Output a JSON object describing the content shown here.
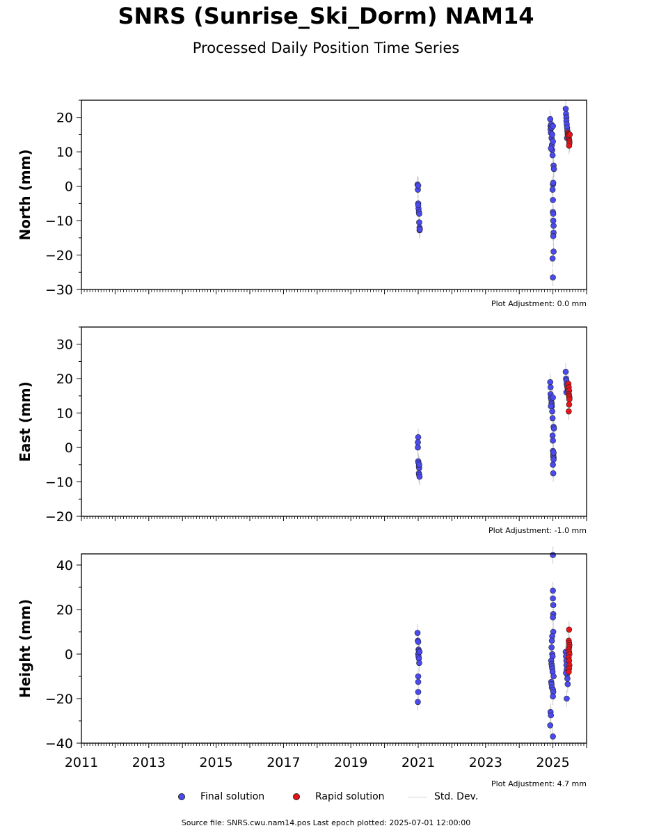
{
  "header": {
    "title": "SNRS (Sunrise_Ski_Dorm) NAM14",
    "subtitle": "Processed Daily Position Time Series"
  },
  "legend": {
    "final": "Final solution",
    "rapid": "Rapid solution",
    "std": "Std. Dev."
  },
  "footer": {
    "source": "Source file: SNRS.cwu.nam14.pos  Last epoch plotted: 2025-07-01 12:00:00"
  },
  "colors": {
    "final": "#4a4af0",
    "rapid": "#e8141a",
    "std": "#c8c8c8",
    "marker_edge": "#222222"
  },
  "chart_data": [
    {
      "type": "scatter",
      "ylabel": "North (mm)",
      "adjustment": "Plot Adjustment: 0.0 mm",
      "xlim": [
        2011,
        2026
      ],
      "ylim": [
        -30,
        25
      ],
      "yticks": [
        -30,
        -20,
        -10,
        0,
        10,
        20
      ],
      "series": [
        {
          "name": "Final solution",
          "points": [
            [
              2020.98,
              0.5
            ],
            [
              2020.99,
              -1.0
            ],
            [
              2021.0,
              0.2
            ],
            [
              2021.0,
              -5.0
            ],
            [
              2021.01,
              -6.5
            ],
            [
              2021.02,
              -7.5
            ],
            [
              2021.03,
              -8.0
            ],
            [
              2021.03,
              -10.5
            ],
            [
              2021.04,
              -12.0
            ],
            [
              2021.04,
              -12.8
            ],
            [
              2021.05,
              -12.5
            ],
            [
              2021.0,
              -5.5
            ],
            [
              2024.92,
              19.5
            ],
            [
              2024.93,
              17.5
            ],
            [
              2024.93,
              16.5
            ],
            [
              2024.94,
              15.5
            ],
            [
              2024.95,
              18.0
            ],
            [
              2024.96,
              17.0
            ],
            [
              2024.96,
              14.0
            ],
            [
              2024.97,
              12.0
            ],
            [
              2024.98,
              15.0
            ],
            [
              2024.98,
              10.5
            ],
            [
              2024.99,
              9.0
            ],
            [
              2025.0,
              17.5
            ],
            [
              2024.94,
              11.0
            ],
            [
              2025.0,
              13.0
            ],
            [
              2025.02,
              6.0
            ],
            [
              2025.03,
              5.0
            ],
            [
              2025.0,
              0.5
            ],
            [
              2024.99,
              -1.0
            ],
            [
              2025.01,
              1.0
            ],
            [
              2025.0,
              -4.0
            ],
            [
              2025.0,
              -7.5
            ],
            [
              2025.01,
              -8.0
            ],
            [
              2025.01,
              -10.0
            ],
            [
              2025.02,
              -11.5
            ],
            [
              2025.02,
              -13.5
            ],
            [
              2025.01,
              -14.5
            ],
            [
              2025.02,
              -19.0
            ],
            [
              2024.99,
              -21.0
            ],
            [
              2025.0,
              -26.5
            ],
            [
              2025.38,
              22.5
            ],
            [
              2025.39,
              21.0
            ],
            [
              2025.4,
              20.0
            ],
            [
              2025.4,
              19.0
            ],
            [
              2025.41,
              18.0
            ],
            [
              2025.42,
              17.0
            ],
            [
              2025.43,
              16.0
            ],
            [
              2025.44,
              15.0
            ],
            [
              2025.45,
              14.5
            ],
            [
              2025.42,
              14.0
            ]
          ]
        },
        {
          "name": "Rapid solution",
          "points": [
            [
              2025.44,
              15.5
            ],
            [
              2025.45,
              15.0
            ],
            [
              2025.46,
              14.5
            ],
            [
              2025.47,
              14.0
            ],
            [
              2025.48,
              13.5
            ],
            [
              2025.49,
              13.0
            ],
            [
              2025.49,
              12.5
            ],
            [
              2025.48,
              11.8
            ],
            [
              2025.47,
              15.2
            ],
            [
              2025.46,
              14.8
            ],
            [
              2025.5,
              15.0
            ]
          ]
        }
      ]
    },
    {
      "type": "scatter",
      "ylabel": "East (mm)",
      "adjustment": "Plot Adjustment: -1.0 mm",
      "xlim": [
        2011,
        2026
      ],
      "ylim": [
        -20,
        35
      ],
      "yticks": [
        -20,
        -10,
        0,
        10,
        20,
        30
      ],
      "series": [
        {
          "name": "Final solution",
          "points": [
            [
              2021.0,
              3.0
            ],
            [
              2020.99,
              1.5
            ],
            [
              2020.99,
              0.0
            ],
            [
              2021.0,
              -4.0
            ],
            [
              2021.01,
              -4.5
            ],
            [
              2021.02,
              -5.5
            ],
            [
              2021.03,
              -6.0
            ],
            [
              2021.02,
              -7.5
            ],
            [
              2021.03,
              -8.0
            ],
            [
              2021.04,
              -8.5
            ],
            [
              2021.03,
              -5.0
            ],
            [
              2024.92,
              19.0
            ],
            [
              2024.93,
              17.5
            ],
            [
              2024.93,
              15.5
            ],
            [
              2024.94,
              14.5
            ],
            [
              2024.95,
              14.0
            ],
            [
              2024.96,
              13.0
            ],
            [
              2024.96,
              12.5
            ],
            [
              2024.97,
              12.0
            ],
            [
              2024.98,
              10.5
            ],
            [
              2024.99,
              8.5
            ],
            [
              2025.0,
              14.5
            ],
            [
              2024.94,
              12.0
            ],
            [
              2025.02,
              6.0
            ],
            [
              2025.03,
              5.5
            ],
            [
              2024.99,
              3.5
            ],
            [
              2025.0,
              2.0
            ],
            [
              2025.0,
              -1.0
            ],
            [
              2025.01,
              -2.0
            ],
            [
              2025.01,
              -2.5
            ],
            [
              2025.02,
              -3.0
            ],
            [
              2025.02,
              -3.5
            ],
            [
              2025.0,
              -5.0
            ],
            [
              2025.01,
              -7.5
            ],
            [
              2025.02,
              -1.5
            ],
            [
              2025.38,
              22.0
            ],
            [
              2025.39,
              20.0
            ],
            [
              2025.4,
              19.5
            ],
            [
              2025.41,
              18.5
            ],
            [
              2025.42,
              18.0
            ],
            [
              2025.43,
              17.5
            ],
            [
              2025.44,
              17.0
            ],
            [
              2025.4,
              16.0
            ],
            [
              2025.45,
              16.5
            ]
          ]
        },
        {
          "name": "Rapid solution",
          "points": [
            [
              2025.46,
              18.5
            ],
            [
              2025.47,
              17.5
            ],
            [
              2025.48,
              16.5
            ],
            [
              2025.47,
              15.5
            ],
            [
              2025.48,
              15.0
            ],
            [
              2025.49,
              14.5
            ],
            [
              2025.49,
              14.0
            ],
            [
              2025.48,
              12.5
            ],
            [
              2025.47,
              10.5
            ]
          ]
        }
      ]
    },
    {
      "type": "scatter",
      "ylabel": "Height (mm)",
      "adjustment": "Plot Adjustment: 4.7 mm",
      "xlim": [
        2011,
        2026
      ],
      "ylim": [
        -40,
        45
      ],
      "yticks": [
        -40,
        -20,
        0,
        20,
        40
      ],
      "xticks": [
        2011,
        2013,
        2015,
        2017,
        2019,
        2021,
        2023,
        2025
      ],
      "series": [
        {
          "name": "Final solution",
          "points": [
            [
              2020.98,
              9.5
            ],
            [
              2020.99,
              6.0
            ],
            [
              2021.0,
              5.5
            ],
            [
              2021.01,
              2.0
            ],
            [
              2021.02,
              1.5
            ],
            [
              2021.0,
              0.0
            ],
            [
              2021.01,
              -1.0
            ],
            [
              2021.02,
              -2.0
            ],
            [
              2021.03,
              -4.0
            ],
            [
              2021.0,
              -10.0
            ],
            [
              2021.0,
              -12.5
            ],
            [
              2021.0,
              -17.0
            ],
            [
              2020.99,
              -21.5
            ],
            [
              2021.04,
              1.0
            ],
            [
              2025.0,
              44.5
            ],
            [
              2025.0,
              28.5
            ],
            [
              2025.0,
              25.0
            ],
            [
              2025.01,
              22.0
            ],
            [
              2025.01,
              18.0
            ],
            [
              2025.0,
              16.5
            ],
            [
              2025.01,
              10.0
            ],
            [
              2024.98,
              8.0
            ],
            [
              2024.97,
              6.0
            ],
            [
              2024.96,
              3.0
            ],
            [
              2024.98,
              0.0
            ],
            [
              2024.99,
              -1.0
            ],
            [
              2024.95,
              -3.0
            ],
            [
              2024.96,
              -4.5
            ],
            [
              2024.97,
              -5.5
            ],
            [
              2024.98,
              -6.5
            ],
            [
              2024.99,
              -8.0
            ],
            [
              2025.02,
              -10.0
            ],
            [
              2024.95,
              -12.5
            ],
            [
              2024.96,
              -13.5
            ],
            [
              2024.97,
              -15.0
            ],
            [
              2025.0,
              -16.0
            ],
            [
              2025.01,
              -17.0
            ],
            [
              2025.0,
              -19.0
            ],
            [
              2024.93,
              -26.0
            ],
            [
              2024.94,
              -27.5
            ],
            [
              2024.92,
              -32.0
            ],
            [
              2025.0,
              -37.0
            ],
            [
              2025.38,
              1.0
            ],
            [
              2025.39,
              -1.0
            ],
            [
              2025.4,
              -3.0
            ],
            [
              2025.4,
              -5.0
            ],
            [
              2025.41,
              -7.0
            ],
            [
              2025.42,
              -9.0
            ],
            [
              2025.43,
              -11.0
            ],
            [
              2025.44,
              -13.5
            ],
            [
              2025.41,
              -20.0
            ],
            [
              2025.39,
              -8.5
            ]
          ]
        },
        {
          "name": "Rapid solution",
          "points": [
            [
              2025.48,
              11.0
            ],
            [
              2025.47,
              6.0
            ],
            [
              2025.48,
              5.0
            ],
            [
              2025.49,
              4.0
            ],
            [
              2025.48,
              3.0
            ],
            [
              2025.47,
              2.0
            ],
            [
              2025.48,
              1.0
            ],
            [
              2025.49,
              0.0
            ],
            [
              2025.47,
              -1.5
            ],
            [
              2025.48,
              -3.0
            ],
            [
              2025.49,
              -5.0
            ],
            [
              2025.48,
              -6.5
            ],
            [
              2025.47,
              -8.0
            ]
          ]
        }
      ]
    }
  ]
}
